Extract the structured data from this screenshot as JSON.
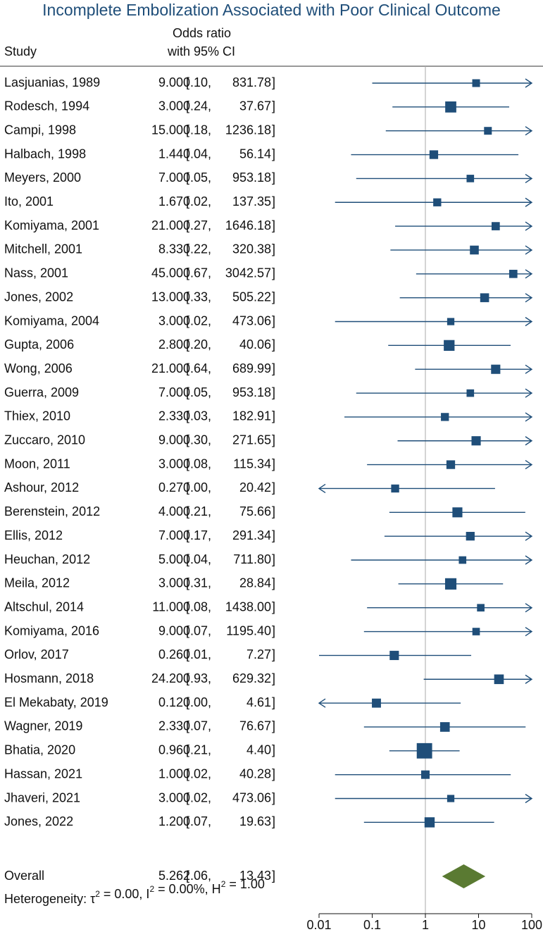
{
  "chart_data": {
    "type": "forest",
    "title": "Incomplete Embolization Associated with Poor Clinical Outcome",
    "col_study_label": "Study",
    "col_effect_label_1": "Odds ratio",
    "col_effect_label_2": "with 95% CI",
    "x_scale": "log",
    "xlim": [
      0.01,
      100
    ],
    "reference_line": 1,
    "ticks": [
      {
        "value": 0.01,
        "label": "0.01"
      },
      {
        "value": 0.1,
        "label": "0.1"
      },
      {
        "value": 1,
        "label": "1"
      },
      {
        "value": 10,
        "label": "10"
      },
      {
        "value": 100,
        "label": "100"
      }
    ],
    "studies": [
      {
        "study": "Lasjuanias, 1989",
        "or": 9.0,
        "or_text": "9.00",
        "lo": 0.1,
        "lo_text": "0.10",
        "hi": 831.78,
        "hi_text": "831.78",
        "weight": 1.0
      },
      {
        "study": "Rodesch, 1994",
        "or": 3.0,
        "or_text": "3.00",
        "lo": 0.24,
        "lo_text": "0.24",
        "hi": 37.67,
        "hi_text": "37.67",
        "weight": 2.8
      },
      {
        "study": "Campi, 1998",
        "or": 15.0,
        "or_text": "15.00",
        "lo": 0.18,
        "lo_text": "0.18",
        "hi": 1236.18,
        "hi_text": "1236.18",
        "weight": 1.0
      },
      {
        "study": "Halbach, 1998",
        "or": 1.44,
        "or_text": "1.44",
        "lo": 0.04,
        "lo_text": "0.04",
        "hi": 56.14,
        "hi_text": "56.14",
        "weight": 1.4
      },
      {
        "study": "Meyers, 2000",
        "or": 7.0,
        "or_text": "7.00",
        "lo": 0.05,
        "lo_text": "0.05",
        "hi": 953.18,
        "hi_text": "953.18",
        "weight": 0.9
      },
      {
        "study": "Ito, 2001",
        "or": 1.67,
        "or_text": "1.67",
        "lo": 0.02,
        "lo_text": "0.02",
        "hi": 137.35,
        "hi_text": "137.35",
        "weight": 1.1
      },
      {
        "study": "Komiyama, 2001",
        "or": 21.0,
        "or_text": "21.00",
        "lo": 0.27,
        "lo_text": "0.27",
        "hi": 1646.18,
        "hi_text": "1646.18",
        "weight": 1.2
      },
      {
        "study": "Mitchell, 2001",
        "or": 8.33,
        "or_text": "8.33",
        "lo": 0.22,
        "lo_text": "0.22",
        "hi": 320.38,
        "hi_text": "320.38",
        "weight": 1.5
      },
      {
        "study": "Nass, 2001",
        "or": 45.0,
        "or_text": "45.00",
        "lo": 0.67,
        "lo_text": "0.67",
        "hi": 3042.57,
        "hi_text": "3042.57",
        "weight": 1.2
      },
      {
        "study": "Jones, 2002",
        "or": 13.0,
        "or_text": "13.00",
        "lo": 0.33,
        "lo_text": "0.33",
        "hi": 505.22,
        "hi_text": "505.22",
        "weight": 1.5
      },
      {
        "study": "Komiyama, 2004",
        "or": 3.0,
        "or_text": "3.00",
        "lo": 0.02,
        "lo_text": "0.02",
        "hi": 473.06,
        "hi_text": "473.06",
        "weight": 0.8
      },
      {
        "study": "Gupta, 2006",
        "or": 2.8,
        "or_text": "2.80",
        "lo": 0.2,
        "lo_text": "0.20",
        "hi": 40.06,
        "hi_text": "40.06",
        "weight": 2.6
      },
      {
        "study": "Wong, 2006",
        "or": 21.0,
        "or_text": "21.00",
        "lo": 0.64,
        "lo_text": "0.64",
        "hi": 689.99,
        "hi_text": "689.99",
        "weight": 1.7
      },
      {
        "study": "Guerra, 2009",
        "or": 7.0,
        "or_text": "7.00",
        "lo": 0.05,
        "lo_text": "0.05",
        "hi": 953.18,
        "hi_text": "953.18",
        "weight": 0.9
      },
      {
        "study": "Thiex, 2010",
        "or": 2.33,
        "or_text": "2.33",
        "lo": 0.03,
        "lo_text": "0.03",
        "hi": 182.91,
        "hi_text": "182.91",
        "weight": 1.1
      },
      {
        "study": "Zuccaro, 2010",
        "or": 9.0,
        "or_text": "9.00",
        "lo": 0.3,
        "lo_text": "0.30",
        "hi": 271.65,
        "hi_text": "271.65",
        "weight": 1.7
      },
      {
        "study": "Moon, 2011",
        "or": 3.0,
        "or_text": "3.00",
        "lo": 0.08,
        "lo_text": "0.08",
        "hi": 115.34,
        "hi_text": "115.34",
        "weight": 1.4
      },
      {
        "study": "Ashour, 2012",
        "or": 0.27,
        "or_text": "0.27",
        "lo": 0.0,
        "lo_text": "0.00",
        "hi": 20.42,
        "hi_text": "20.42",
        "weight": 1.1
      },
      {
        "study": "Berenstein, 2012",
        "or": 4.0,
        "or_text": "4.00",
        "lo": 0.21,
        "lo_text": "0.21",
        "hi": 75.66,
        "hi_text": "75.66",
        "weight": 2.1
      },
      {
        "study": "Ellis, 2012",
        "or": 7.0,
        "or_text": "7.00",
        "lo": 0.17,
        "lo_text": "0.17",
        "hi": 291.34,
        "hi_text": "291.34",
        "weight": 1.4
      },
      {
        "study": "Heuchan, 2012",
        "or": 5.0,
        "or_text": "5.00",
        "lo": 0.04,
        "lo_text": "0.04",
        "hi": 711.8,
        "hi_text": "711.80",
        "weight": 0.9
      },
      {
        "study": "Meila, 2012",
        "or": 3.0,
        "or_text": "3.00",
        "lo": 0.31,
        "lo_text": "0.31",
        "hi": 28.84,
        "hi_text": "28.84",
        "weight": 3.0
      },
      {
        "study": "Altschul, 2014",
        "or": 11.0,
        "or_text": "11.00",
        "lo": 0.08,
        "lo_text": "0.08",
        "hi": 1438.0,
        "hi_text": "1438.00",
        "weight": 0.9
      },
      {
        "study": "Komiyama, 2016",
        "or": 9.0,
        "or_text": "9.00",
        "lo": 0.07,
        "lo_text": "0.07",
        "hi": 1195.4,
        "hi_text": "1195.40",
        "weight": 0.9
      },
      {
        "study": "Orlov, 2017",
        "or": 0.26,
        "or_text": "0.26",
        "lo": 0.01,
        "lo_text": "0.01",
        "hi": 7.27,
        "hi_text": "7.27",
        "weight": 1.7
      },
      {
        "study": "Hosmann, 2018",
        "or": 24.2,
        "or_text": "24.20",
        "lo": 0.93,
        "lo_text": "0.93",
        "hi": 629.32,
        "hi_text": "629.32",
        "weight": 1.9
      },
      {
        "study": "El Mekabaty, 2019",
        "or": 0.12,
        "or_text": "0.12",
        "lo": 0.0,
        "lo_text": "0.00",
        "hi": 4.61,
        "hi_text": "4.61",
        "weight": 1.6
      },
      {
        "study": "Wagner, 2019",
        "or": 2.33,
        "or_text": "2.33",
        "lo": 0.07,
        "lo_text": "0.07",
        "hi": 76.67,
        "hi_text": "76.67",
        "weight": 1.9
      },
      {
        "study": "Bhatia, 2020",
        "or": 0.96,
        "or_text": "0.96",
        "lo": 0.21,
        "lo_text": "0.21",
        "hi": 4.4,
        "hi_text": "4.40",
        "weight": 6.5
      },
      {
        "study": "Hassan, 2021",
        "or": 1.0,
        "or_text": "1.00",
        "lo": 0.02,
        "lo_text": "0.02",
        "hi": 40.28,
        "hi_text": "40.28",
        "weight": 1.3
      },
      {
        "study": "Jhaveri, 2021",
        "or": 3.0,
        "or_text": "3.00",
        "lo": 0.02,
        "lo_text": "0.02",
        "hi": 473.06,
        "hi_text": "473.06",
        "weight": 0.8
      },
      {
        "study": "Jones, 2022",
        "or": 1.2,
        "or_text": "1.20",
        "lo": 0.07,
        "lo_text": "0.07",
        "hi": 19.63,
        "hi_text": "19.63",
        "weight": 2.2
      }
    ],
    "overall": {
      "label": "Overall",
      "or": 5.26,
      "or_text": "5.26",
      "lo": 2.06,
      "lo_text": "2.06",
      "hi": 13.43,
      "hi_text": "13.43"
    },
    "heterogeneity": {
      "prefix": "Heterogeneity: τ",
      "tau_exp": "2",
      "tau_val": " = 0.00, I",
      "i_exp": "2",
      "i_val": " = 0.00%, H",
      "h_exp": "2",
      "h_val": " = 1.00"
    },
    "colors": {
      "marker": "#1f4e79",
      "diamond": "#5a7a32",
      "title": "#1f4e79",
      "refline": "#aaaaaa"
    }
  }
}
